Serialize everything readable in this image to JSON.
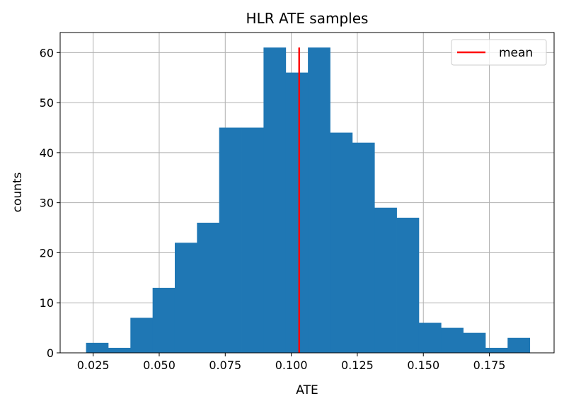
{
  "chart_data": {
    "type": "bar",
    "title": "HLR ATE samples",
    "xlabel": "ATE",
    "ylabel": "counts",
    "xlim": [
      0.0125,
      0.1995
    ],
    "ylim": [
      0,
      64
    ],
    "grid": true,
    "x_ticks": [
      0.025,
      0.05,
      0.075,
      0.1,
      0.125,
      0.15,
      0.175
    ],
    "x_tick_labels": [
      "0.025",
      "0.050",
      "0.075",
      "0.100",
      "0.125",
      "0.150",
      "0.175"
    ],
    "y_ticks": [
      0,
      10,
      20,
      30,
      40,
      50,
      60
    ],
    "y_tick_labels": [
      "0",
      "10",
      "20",
      "30",
      "40",
      "50",
      "60"
    ],
    "bin_edges": [
      0.0223,
      0.0307,
      0.0391,
      0.0475,
      0.0559,
      0.0643,
      0.0727,
      0.0811,
      0.0895,
      0.0979,
      0.1063,
      0.1147,
      0.1231,
      0.1315,
      0.1399,
      0.1483,
      0.1567,
      0.1651,
      0.1735,
      0.1819,
      0.1903
    ],
    "counts": [
      2,
      1,
      7,
      13,
      22,
      26,
      45,
      45,
      61,
      56,
      61,
      44,
      42,
      29,
      27,
      6,
      5,
      4,
      1,
      3
    ],
    "bar_color": "#1f77b4",
    "mean": {
      "name": "mean",
      "x": 0.103,
      "y_range": [
        0,
        61
      ],
      "color": "#ff0000"
    },
    "legend": {
      "placement": "top-right",
      "entries": [
        "mean"
      ]
    }
  }
}
